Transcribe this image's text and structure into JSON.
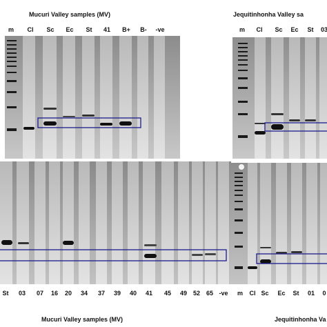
{
  "panels": {
    "top_left": {
      "title": "Mucuri Valley samples (MV)",
      "lanes": [
        "m",
        "Cl",
        "Sc",
        "Ec",
        "St",
        "41",
        "B+",
        "B-",
        "-ve"
      ]
    },
    "top_right": {
      "title": "Jequitinhonha Valley sa",
      "lanes": [
        "m",
        "Cl",
        "Sc",
        "Ec",
        "St",
        "03"
      ]
    },
    "bottom_left": {
      "title": "Mucuri Valley samples (MV)",
      "lanes": [
        "St",
        "03",
        "07",
        "16",
        "20",
        "34",
        "37",
        "39",
        "40",
        "41",
        "45",
        "49",
        "52",
        "65",
        "-ve"
      ]
    },
    "bottom_right": {
      "title": "Jequitinhonha Va",
      "lanes": [
        "m",
        "Cl",
        "Sc",
        "Ec",
        "St",
        "01",
        "0"
      ]
    }
  },
  "colors": {
    "gel_bg": "#9a9a9a",
    "lane": "#c9c9c9",
    "band": "#111111",
    "box": "#1c1c8c"
  }
}
